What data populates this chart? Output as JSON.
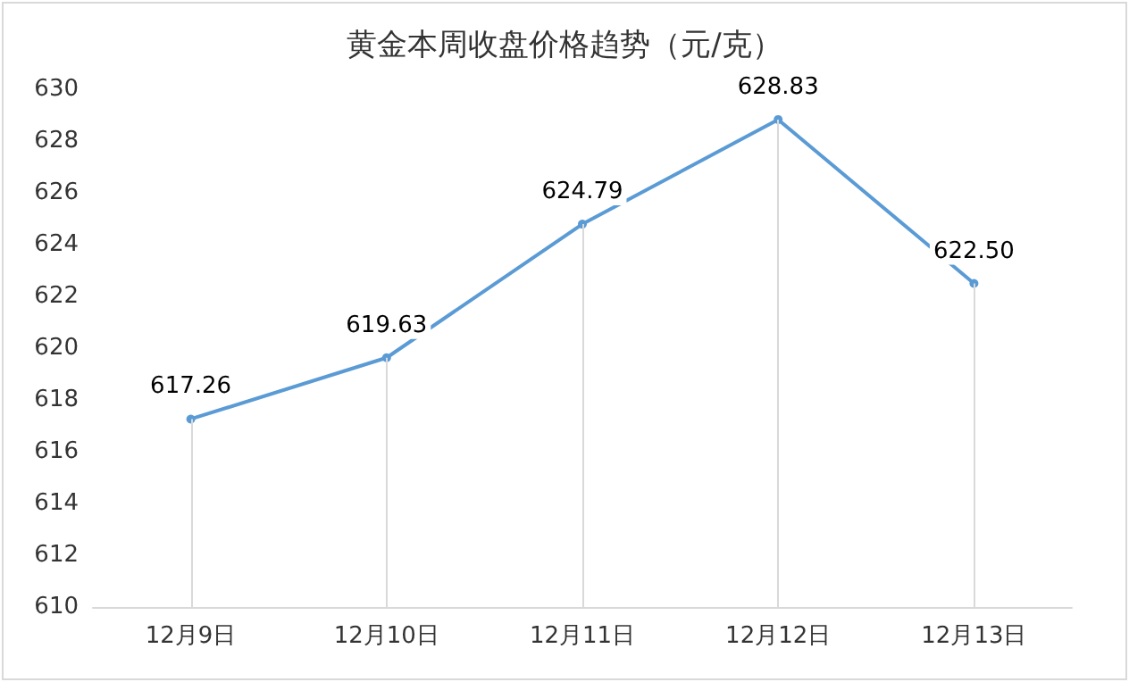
{
  "chart_data": {
    "type": "line",
    "title": "黄金本周收盘价格趋势（元/克）",
    "categories": [
      "12月9日",
      "12月10日",
      "12月11日",
      "12月12日",
      "12月13日"
    ],
    "series": [
      {
        "color": "#5b9bd5",
        "values": [
          617.26,
          619.63,
          624.79,
          628.83,
          622.5
        ]
      }
    ],
    "value_labels": [
      "617.26",
      "619.63",
      "624.79",
      "628.83",
      "622.50"
    ],
    "ylim": [
      610,
      630
    ],
    "yticks": [
      610,
      612,
      614,
      616,
      618,
      620,
      622,
      624,
      626,
      628,
      630
    ],
    "grid": "x",
    "marker": "circle",
    "line_style": "solid"
  }
}
